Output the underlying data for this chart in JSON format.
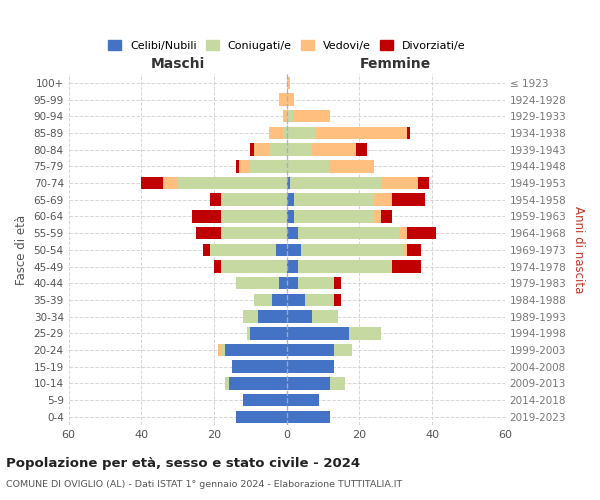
{
  "age_groups": [
    "0-4",
    "5-9",
    "10-14",
    "15-19",
    "20-24",
    "25-29",
    "30-34",
    "35-39",
    "40-44",
    "45-49",
    "50-54",
    "55-59",
    "60-64",
    "65-69",
    "70-74",
    "75-79",
    "80-84",
    "85-89",
    "90-94",
    "95-99",
    "100+"
  ],
  "birth_years": [
    "2019-2023",
    "2014-2018",
    "2009-2013",
    "2004-2008",
    "1999-2003",
    "1994-1998",
    "1989-1993",
    "1984-1988",
    "1979-1983",
    "1974-1978",
    "1969-1973",
    "1964-1968",
    "1959-1963",
    "1954-1958",
    "1949-1953",
    "1944-1948",
    "1939-1943",
    "1934-1938",
    "1929-1933",
    "1924-1928",
    "≤ 1923"
  ],
  "males": {
    "celibi": [
      14,
      12,
      16,
      15,
      17,
      10,
      8,
      4,
      2,
      0,
      3,
      0,
      0,
      0,
      0,
      0,
      0,
      0,
      0,
      0,
      0
    ],
    "coniugati": [
      0,
      0,
      1,
      0,
      1,
      1,
      4,
      5,
      12,
      18,
      18,
      18,
      18,
      18,
      30,
      10,
      5,
      1,
      0,
      0,
      0
    ],
    "vedovi": [
      0,
      0,
      0,
      0,
      1,
      0,
      0,
      0,
      0,
      0,
      0,
      0,
      0,
      0,
      4,
      3,
      4,
      4,
      1,
      2,
      0
    ],
    "divorziati": [
      0,
      0,
      0,
      0,
      0,
      0,
      0,
      0,
      0,
      2,
      2,
      7,
      8,
      3,
      6,
      1,
      1,
      0,
      0,
      0,
      0
    ]
  },
  "females": {
    "nubili": [
      12,
      9,
      12,
      13,
      13,
      17,
      7,
      5,
      3,
      3,
      4,
      3,
      2,
      2,
      1,
      0,
      0,
      0,
      0,
      0,
      0
    ],
    "coniugate": [
      0,
      0,
      4,
      0,
      5,
      9,
      7,
      8,
      10,
      26,
      28,
      28,
      22,
      22,
      25,
      12,
      7,
      8,
      2,
      0,
      0
    ],
    "vedove": [
      0,
      0,
      0,
      0,
      0,
      0,
      0,
      0,
      0,
      0,
      1,
      2,
      2,
      5,
      10,
      12,
      12,
      25,
      10,
      2,
      1
    ],
    "divorziate": [
      0,
      0,
      0,
      0,
      0,
      0,
      0,
      2,
      2,
      8,
      4,
      8,
      3,
      9,
      3,
      0,
      3,
      1,
      0,
      0,
      0
    ]
  },
  "colors": {
    "celibi": "#4472c4",
    "coniugati": "#c5d9a0",
    "vedovi": "#ffc07f",
    "divorziati": "#c00000"
  },
  "xlim": 60,
  "title": "Popolazione per età, sesso e stato civile - 2024",
  "subtitle": "COMUNE DI OVIGLIO (AL) - Dati ISTAT 1° gennaio 2024 - Elaborazione TUTTITALIA.IT",
  "ylabel_left": "Fasce di età",
  "ylabel_right": "Anni di nascita",
  "xlabel_male": "Maschi",
  "xlabel_female": "Femmine",
  "legend_labels": [
    "Celibi/Nubili",
    "Coniugati/e",
    "Vedovi/e",
    "Divorziati/e"
  ],
  "background_color": "#ffffff",
  "grid_color": "#cccccc"
}
